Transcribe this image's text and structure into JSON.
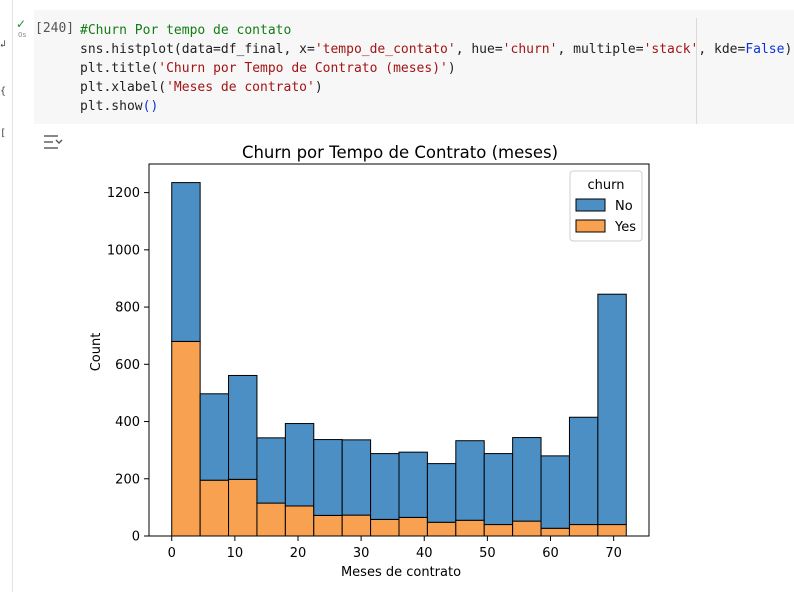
{
  "cell": {
    "execution_count": "[240]",
    "run_time": "0s",
    "code_lines": [
      [
        {
          "t": "#Churn Por tempo de contato",
          "c": "comment"
        }
      ],
      [
        {
          "t": "sns.histplot(data=df_final, x=",
          "c": "plain"
        },
        {
          "t": "'tempo_de_contato'",
          "c": "string"
        },
        {
          "t": ", hue=",
          "c": "plain"
        },
        {
          "t": "'churn'",
          "c": "string"
        },
        {
          "t": ", multiple=",
          "c": "plain"
        },
        {
          "t": "'stack'",
          "c": "string"
        },
        {
          "t": ", kde=",
          "c": "plain"
        },
        {
          "t": "False",
          "c": "keyword"
        },
        {
          "t": ")",
          "c": "plain"
        }
      ],
      [
        {
          "t": "plt.title(",
          "c": "plain"
        },
        {
          "t": "'Churn por Tempo de Contrato (meses)'",
          "c": "string"
        },
        {
          "t": ")",
          "c": "plain"
        }
      ],
      [
        {
          "t": "plt.xlabel(",
          "c": "plain"
        },
        {
          "t": "'Meses de contrato'",
          "c": "string"
        },
        {
          "t": ")",
          "c": "plain"
        }
      ],
      [
        {
          "t": "plt.show",
          "c": "plain"
        },
        {
          "t": "()",
          "c": "keyword"
        }
      ]
    ]
  },
  "chart_data": {
    "type": "bar",
    "title": "Churn por Tempo de Contrato (meses)",
    "xlabel": "Meses de contrato",
    "ylabel": "Count",
    "xlim": [
      -3.6,
      75.6
    ],
    "ylim": [
      0,
      1300
    ],
    "xticks": [
      0,
      10,
      20,
      30,
      40,
      50,
      60,
      70
    ],
    "yticks": [
      0,
      200,
      400,
      600,
      800,
      1000,
      1200
    ],
    "grid": false,
    "legend": {
      "title": "churn",
      "placement": "top-right"
    },
    "bin_edges": [
      0,
      4.5,
      9,
      13.5,
      18,
      22.5,
      27,
      31.5,
      36,
      40.5,
      45,
      49.5,
      54,
      58.5,
      63,
      67.5,
      72
    ],
    "series": [
      {
        "name": "No",
        "color": "#4c8fc4",
        "values": [
          555,
          302,
          363,
          228,
          288,
          265,
          263,
          230,
          228,
          205,
          278,
          248,
          292,
          253,
          375,
          805
        ]
      },
      {
        "name": "Yes",
        "color": "#f8a150",
        "values": [
          680,
          195,
          198,
          115,
          105,
          72,
          73,
          58,
          65,
          48,
          55,
          40,
          52,
          27,
          40,
          40
        ]
      }
    ],
    "colors": {
      "edge": "#000000"
    }
  }
}
